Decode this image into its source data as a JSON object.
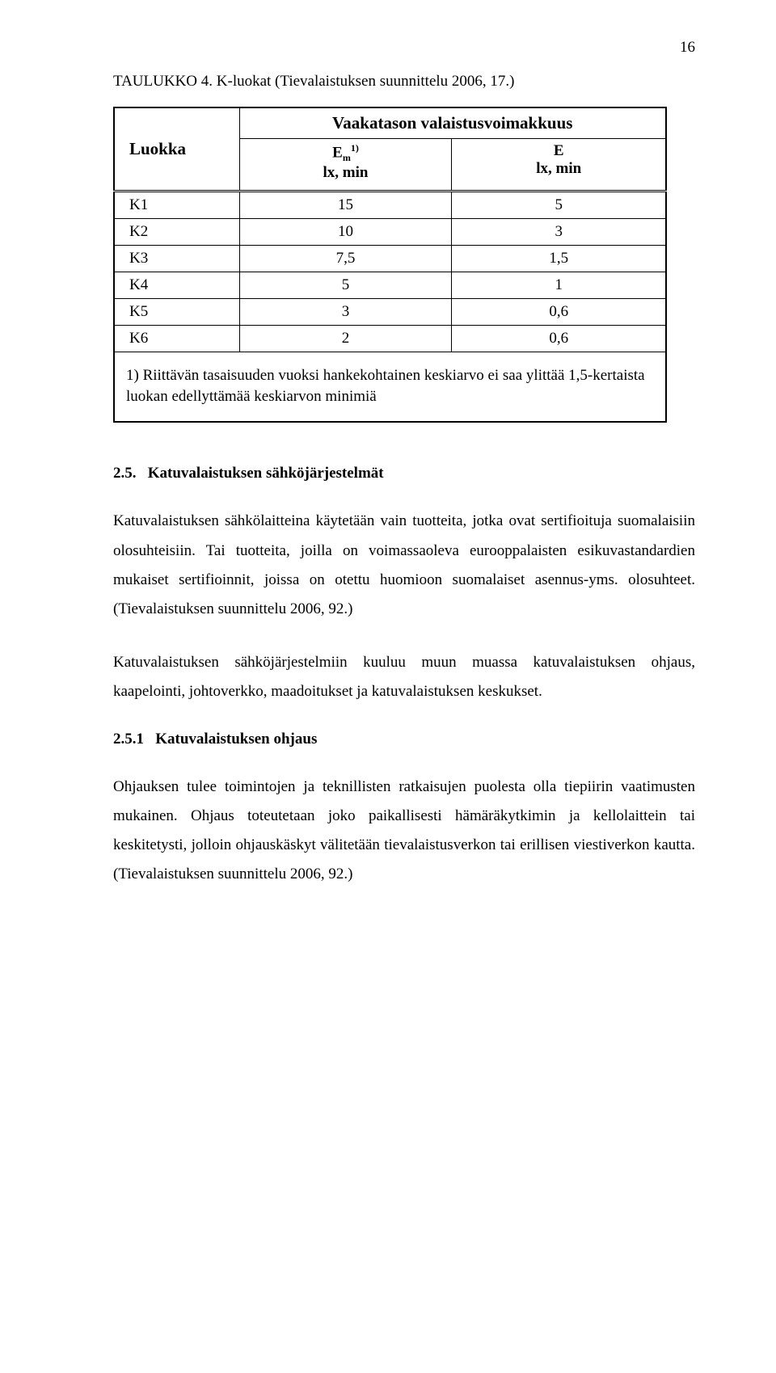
{
  "page_number": "16",
  "caption": "TAULUKKO 4. K-luokat (Tievalaistuksen suunnittelu 2006, 17.)",
  "table": {
    "header": {
      "luokka": "Luokka",
      "group": "Vaakatason valaistusvoimakkuus",
      "col_em_line1": "E",
      "col_em_sub": "m",
      "col_em_sup": "1)",
      "col_em_line2": "lx, min",
      "col_e_line1": "E",
      "col_e_line2": "lx, min"
    },
    "rows": [
      {
        "c1": "K1",
        "c2": "15",
        "c3": "5"
      },
      {
        "c1": "K2",
        "c2": "10",
        "c3": "3"
      },
      {
        "c1": "K3",
        "c2": "7,5",
        "c3": "1,5"
      },
      {
        "c1": "K4",
        "c2": "5",
        "c3": "1"
      },
      {
        "c1": "K5",
        "c2": "3",
        "c3": "0,6"
      },
      {
        "c1": "K6",
        "c2": "2",
        "c3": "0,6"
      }
    ],
    "footnote": "1) Riittävän tasaisuuden vuoksi hankekohtainen keskiarvo ei saa ylittää 1,5-kertaista luokan edellyttämää keskiarvon minimiä"
  },
  "section_2_5": {
    "number": "2.5.",
    "title": "Katuvalaistuksen sähköjärjestelmät",
    "para1": "Katuvalaistuksen sähkölaitteina käytetään vain tuotteita, jotka ovat sertifioituja suomalaisiin olosuhteisiin. Tai tuotteita, joilla on voimassaoleva eurooppalaisten esikuvastandardien mukaiset sertifioinnit, joissa on otettu huomioon suomalaiset asennus-yms. olosuhteet. (Tievalaistuksen suunnittelu 2006, 92.)",
    "para2": "Katuvalaistuksen sähköjärjestelmiin kuuluu muun muassa katuvalaistuksen ohjaus, kaapelointi, johtoverkko, maadoitukset ja katuvalaistuksen keskukset."
  },
  "section_2_5_1": {
    "number": "2.5.1",
    "title": "Katuvalaistuksen ohjaus",
    "para": "Ohjauksen tulee toimintojen ja teknillisten ratkaisujen puolesta olla tiepiirin vaatimusten mukainen. Ohjaus toteutetaan joko paikallisesti hämäräkytkimin ja kellolaittein tai keskitetysti, jolloin ohjauskäskyt välitetään tievalaistusverkon tai erillisen viestiverkon kautta. (Tievalaistuksen suunnittelu 2006, 92.)"
  }
}
